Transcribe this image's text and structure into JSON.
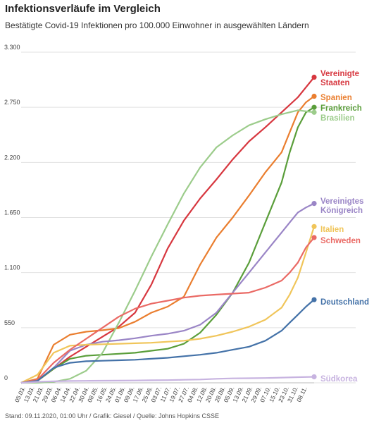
{
  "header": {
    "title": "Infektionsverläufe im Vergleich",
    "subtitle": "Bestätigte Covid-19 Infektionen pro 100.000 Einwohner in ausgewählten Ländern"
  },
  "footer": {
    "text": "Stand: 09.11.2020, 01:00 Uhr / Grafik: Giesel / Quelle: Johns Hopkins CSSE"
  },
  "chart_data": {
    "type": "line",
    "title": "Infektionsverläufe im Vergleich",
    "subtitle": "Bestätigte Covid-19 Infektionen pro 100.000 Einwohner in ausgewählten Ländern",
    "xlabel": "",
    "ylabel": "",
    "ylim": [
      0,
      3300
    ],
    "yticks": [
      0,
      550,
      1100,
      1650,
      2200,
      2750,
      3300
    ],
    "ytick_labels": [
      "0",
      "550",
      "1.100",
      "1.650",
      "2.200",
      "2.750",
      "3.300"
    ],
    "x_range": [
      0,
      36
    ],
    "x_tick_labels": [
      "05.03.",
      "13.03.",
      "21.03.",
      "29.03.",
      "06.04.",
      "14.04.",
      "22.04.",
      "30.04.",
      "08.05.",
      "16.05.",
      "24.05.",
      "01.06.",
      "09.06.",
      "17.06.",
      "25.06.",
      "03.07.",
      "11.07.",
      "19.07.",
      "27.07.",
      "04.08.",
      "12.08.",
      "20.08.",
      "28.08.",
      "05.09.",
      "13.09.",
      "21.09.",
      "29.09.",
      "07.10.",
      "15.10.",
      "23.10.",
      "31.10.",
      "08.11."
    ],
    "grid": true,
    "legend": "direct labels at line ends (right)",
    "series": [
      {
        "name": "Vereinigte Staaten",
        "color": "#d7373f",
        "x": [
          0,
          2,
          4,
          6,
          8,
          10,
          12,
          14,
          16,
          18,
          20,
          22,
          24,
          26,
          28,
          30,
          32,
          34,
          36
        ],
        "y": [
          0,
          20,
          140,
          260,
          360,
          460,
          560,
          700,
          980,
          1340,
          1620,
          1840,
          2030,
          2230,
          2410,
          2550,
          2700,
          2850,
          3050
        ]
      },
      {
        "name": "Spanien",
        "color": "#ea7e2f",
        "x": [
          0,
          2,
          4,
          6,
          8,
          10,
          12,
          14,
          16,
          18,
          20,
          22,
          24,
          26,
          28,
          30,
          32,
          33,
          34,
          35,
          36
        ],
        "y": [
          0,
          40,
          380,
          480,
          510,
          525,
          545,
          610,
          700,
          760,
          860,
          1180,
          1450,
          1650,
          1870,
          2100,
          2300,
          2500,
          2700,
          2800,
          2860
        ]
      },
      {
        "name": "Frankreich",
        "color": "#5a9e3a",
        "x": [
          0,
          2,
          4,
          6,
          8,
          10,
          12,
          14,
          16,
          18,
          20,
          22,
          24,
          26,
          28,
          30,
          32,
          33,
          34,
          35,
          36
        ],
        "y": [
          0,
          20,
          140,
          240,
          270,
          280,
          290,
          300,
          320,
          340,
          390,
          500,
          680,
          900,
          1200,
          1600,
          2000,
          2300,
          2550,
          2700,
          2750
        ]
      },
      {
        "name": "Brasilien",
        "color": "#9ccc8b",
        "x": [
          0,
          2,
          4,
          6,
          8,
          10,
          12,
          14,
          16,
          18,
          20,
          22,
          24,
          26,
          28,
          30,
          32,
          34,
          36
        ],
        "y": [
          0,
          0,
          10,
          40,
          120,
          300,
          600,
          920,
          1260,
          1580,
          1890,
          2150,
          2350,
          2470,
          2570,
          2630,
          2680,
          2720,
          2700
        ]
      },
      {
        "name": "Vereinigtes Königreich",
        "color": "#9a85c6",
        "x": [
          0,
          2,
          4,
          6,
          8,
          10,
          12,
          14,
          16,
          18,
          20,
          22,
          24,
          26,
          28,
          30,
          32,
          33,
          34,
          35,
          36
        ],
        "y": [
          0,
          20,
          150,
          320,
          380,
          410,
          425,
          445,
          470,
          490,
          520,
          580,
          700,
          900,
          1100,
          1300,
          1500,
          1600,
          1700,
          1750,
          1790
        ]
      },
      {
        "name": "Italien",
        "color": "#f0c55a",
        "x": [
          0,
          2,
          4,
          6,
          8,
          10,
          12,
          14,
          16,
          18,
          20,
          22,
          24,
          26,
          28,
          30,
          32,
          33,
          34,
          35,
          36
        ],
        "y": [
          0,
          80,
          300,
          370,
          380,
          385,
          390,
          395,
          400,
          410,
          420,
          440,
          470,
          510,
          560,
          630,
          750,
          880,
          1050,
          1300,
          1560
        ]
      },
      {
        "name": "Schweden",
        "color": "#ea6a65",
        "x": [
          0,
          2,
          4,
          6,
          8,
          10,
          12,
          14,
          16,
          18,
          20,
          22,
          24,
          26,
          28,
          30,
          32,
          33,
          34,
          35,
          36
        ],
        "y": [
          0,
          30,
          200,
          330,
          440,
          550,
          660,
          740,
          790,
          820,
          850,
          870,
          880,
          890,
          900,
          950,
          1020,
          1100,
          1200,
          1350,
          1450
        ]
      },
      {
        "name": "Deutschland",
        "color": "#4472a8",
        "x": [
          0,
          2,
          4,
          6,
          8,
          10,
          12,
          14,
          16,
          18,
          20,
          22,
          24,
          26,
          28,
          30,
          32,
          33,
          34,
          35,
          36
        ],
        "y": [
          0,
          20,
          150,
          200,
          215,
          220,
          225,
          230,
          240,
          250,
          265,
          280,
          300,
          330,
          360,
          420,
          520,
          600,
          680,
          760,
          830
        ]
      },
      {
        "name": "Südkorea",
        "color": "#c7b3e0",
        "x": [
          0,
          2,
          4,
          6,
          8,
          10,
          12,
          14,
          16,
          18,
          20,
          22,
          24,
          26,
          28,
          30,
          32,
          34,
          36
        ],
        "y": [
          0,
          10,
          15,
          18,
          20,
          21,
          22,
          23,
          25,
          27,
          30,
          33,
          40,
          44,
          46,
          48,
          52,
          56,
          60
        ]
      }
    ]
  }
}
